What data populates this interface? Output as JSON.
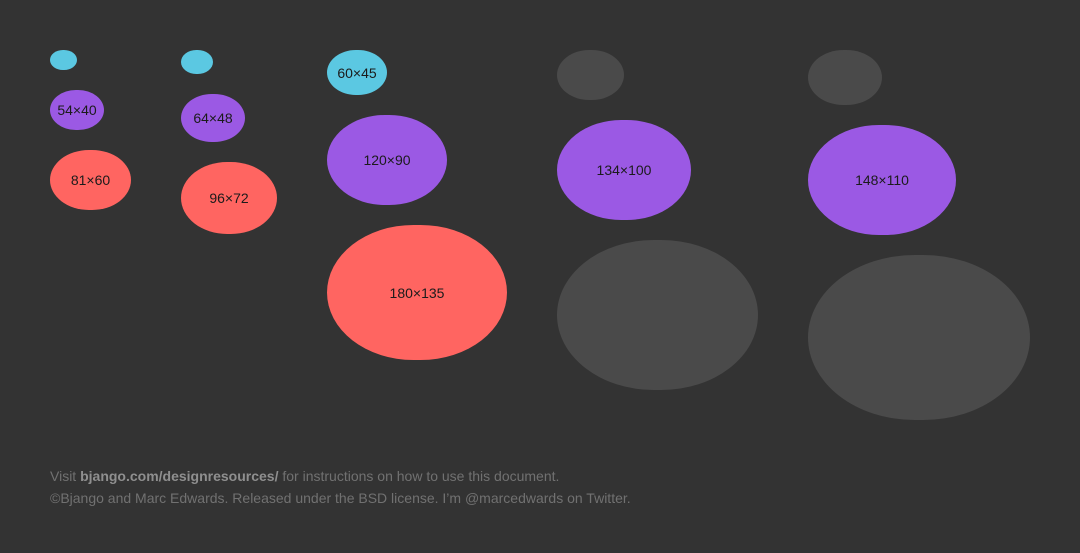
{
  "colors": {
    "background": "#333333",
    "cyan": "#5bc8e2",
    "purple": "#9b59e4",
    "red": "#ff6561",
    "gray": "#4a4a4a",
    "footer_text": "#717171"
  },
  "shapes": {
    "col1": {
      "purple_label": "54×40",
      "red_label": "81×60"
    },
    "col2": {
      "purple_label": "64×48",
      "red_label": "96×72"
    },
    "col3": {
      "cyan_label": "60×45",
      "purple_label": "120×90",
      "red_label": "180×135"
    },
    "col4": {
      "purple_label": "134×100"
    },
    "col5": {
      "purple_label": "148×110"
    }
  },
  "footer": {
    "line1_prefix": "Visit ",
    "line1_link": "bjango.com/designresources/",
    "line1_suffix": " for instructions on how to use this document.",
    "line2": "©Bjango and Marc Edwards. Released under the BSD license. I’m @marcedwards on Twitter."
  }
}
